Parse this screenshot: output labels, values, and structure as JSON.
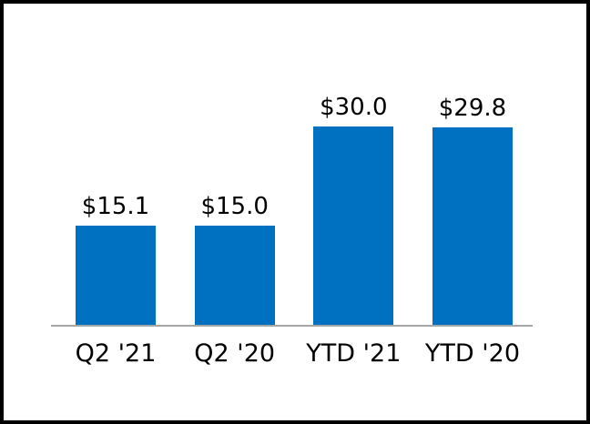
{
  "chart_data": {
    "type": "bar",
    "title": "",
    "xlabel": "",
    "ylabel": "",
    "categories": [
      "Q2 '21",
      "Q2 '20",
      "YTD '21",
      "YTD '20"
    ],
    "values": [
      15.1,
      15.0,
      30.0,
      29.8
    ],
    "value_labels": [
      "$15.1",
      "$15.0",
      "$30.0",
      "$29.8"
    ],
    "ylim": [
      0,
      33
    ],
    "grid": false,
    "legend": false,
    "y_axis_visible": false,
    "bar_color": "#0070c0",
    "axis_line_color": "#a6a6a6",
    "label_color": "#000000",
    "frame_border_color": "#000000",
    "background_color": "#ffffff"
  }
}
